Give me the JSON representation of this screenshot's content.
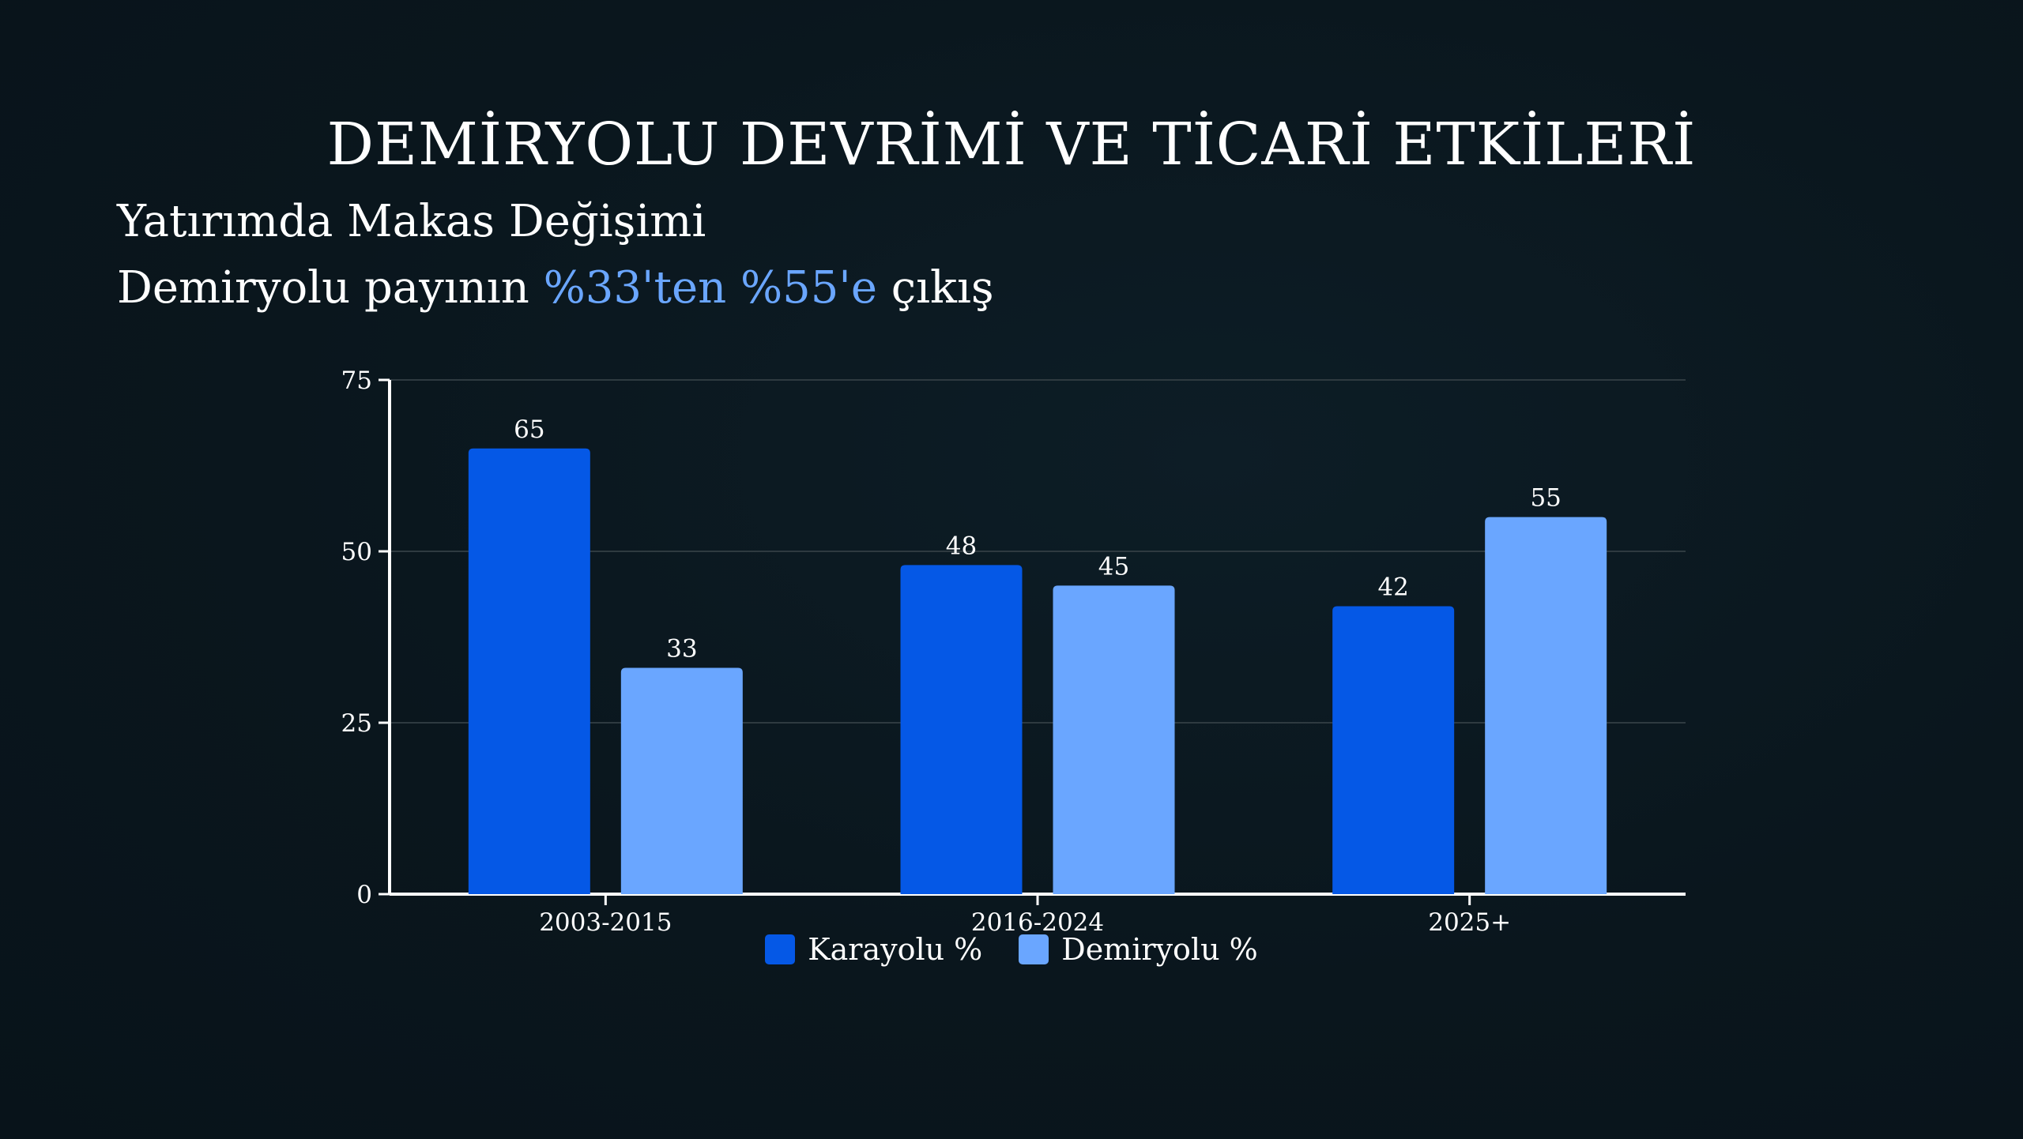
{
  "slide": {
    "title": "DEMİRYOLU DEVRİMİ VE TİCARİ ETKİLERİ",
    "subtitle": "Yatırımda Makas Değişimi",
    "headline_prefix": "Demiryolu payının ",
    "headline_accent": "%33'ten %55'e",
    "headline_suffix": " çıkış"
  },
  "chart_data": {
    "type": "bar",
    "categories": [
      "2003-2015",
      "2016-2024",
      "2025+"
    ],
    "series": [
      {
        "name": "Karayolu %",
        "values": [
          65,
          48,
          42
        ],
        "color": "#0558e6"
      },
      {
        "name": "Demiryolu %",
        "values": [
          33,
          45,
          55
        ],
        "color": "#6aa6ff"
      }
    ],
    "ylim": [
      0,
      75
    ],
    "yticks": [
      0,
      25,
      50,
      75
    ],
    "grid": true,
    "legend_position": "bottom",
    "accent_color": "#6aa6ff"
  }
}
